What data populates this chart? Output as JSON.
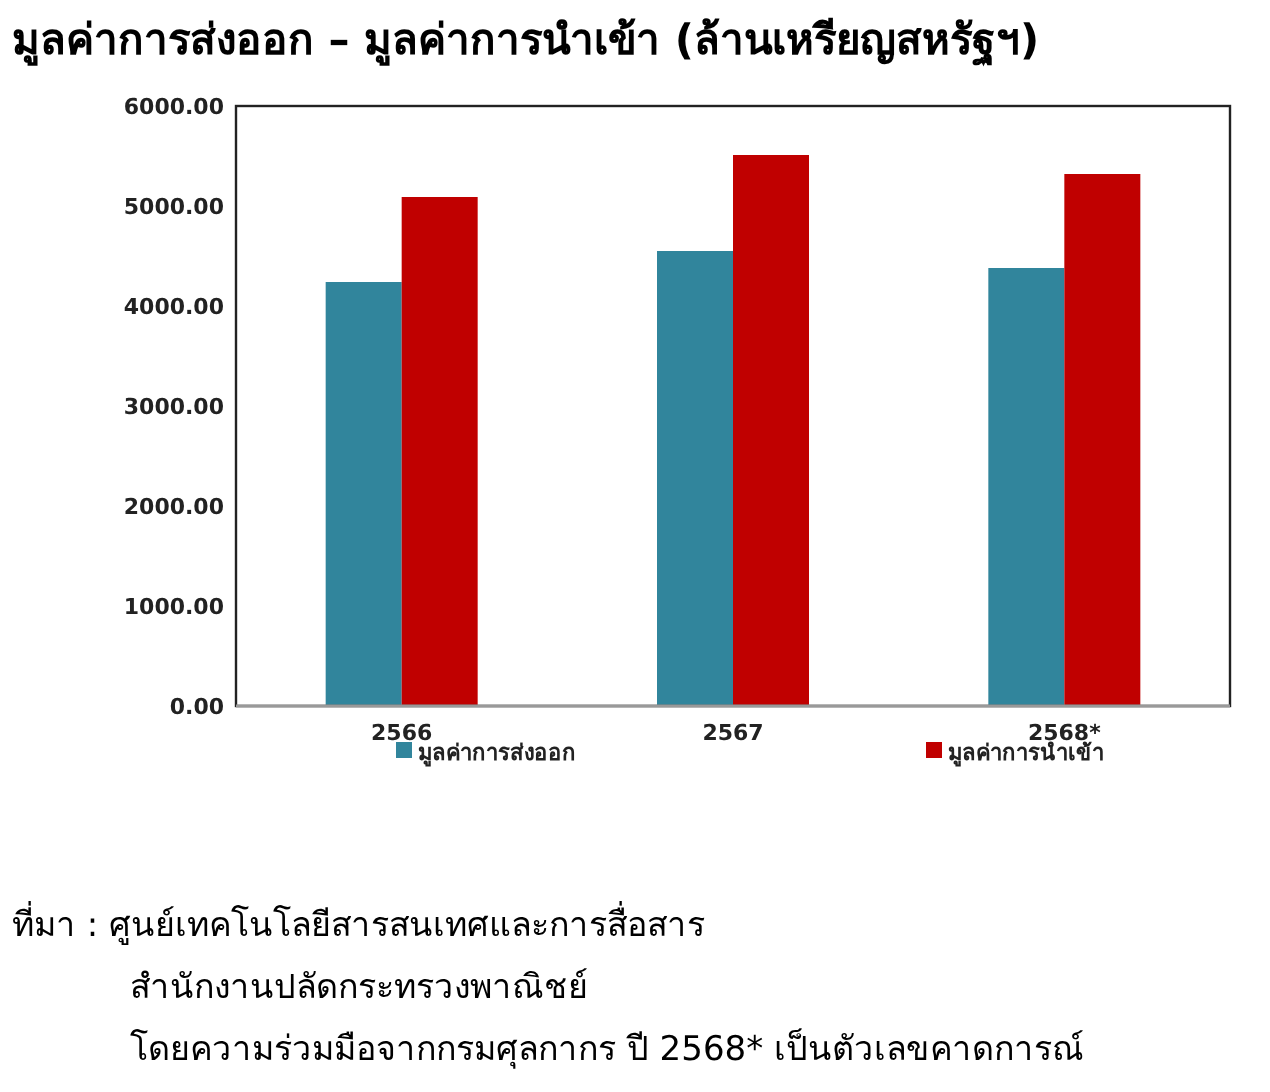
{
  "chart_data": {
    "type": "bar",
    "title": "มูลค่าการส่งออก – มูลค่าการนำเข้า  (ล้านเหรียญสหรัฐฯ)",
    "categories": [
      "2566",
      "2567",
      "2568*"
    ],
    "series": [
      {
        "name": "มูลค่าการส่งออก",
        "color": "#31859c",
        "values": [
          4240,
          4550,
          4380
        ]
      },
      {
        "name": "มูลค่าการนำเข้า",
        "color": "#c00000",
        "values": [
          5090,
          5510,
          5320
        ]
      }
    ],
    "ylim": [
      0,
      6000
    ],
    "yticks": [
      {
        "value": 0,
        "label": "0.00"
      },
      {
        "value": 1000,
        "label": "1000.00"
      },
      {
        "value": 2000,
        "label": "2000.00"
      },
      {
        "value": 3000,
        "label": "3000.00"
      },
      {
        "value": 4000,
        "label": "4000.00"
      },
      {
        "value": 5000,
        "label": "5000.00"
      },
      {
        "value": 6000,
        "label": "6000.00"
      }
    ],
    "grid": false,
    "legend": "bottom",
    "annotations": [
      "ที่มา : ศูนย์เทคโนโลยีสารสนเทศและการสื่อสาร",
      "สำนักงานปลัดกระทรวงพาณิชย์",
      "โดยความร่วมมือจากกรมศุลกากร    ปี 2568* เป็นตัวเลขคาดการณ์"
    ]
  }
}
